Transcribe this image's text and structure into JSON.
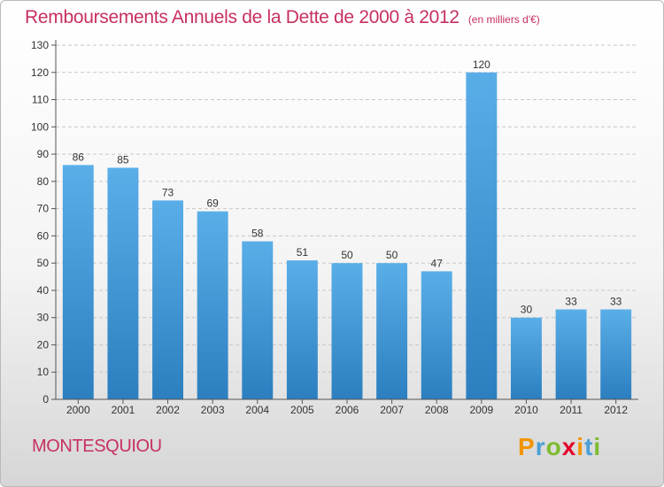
{
  "title": "Remboursements Annuels de la Dette de 2000 à 2012",
  "unit_note": "(en milliers d'€)",
  "commune": "MONTESQUIOU",
  "brand": {
    "letters": [
      "P",
      "r",
      "o",
      "x",
      "i",
      "t",
      "i"
    ],
    "colors": [
      "#f29400",
      "#4a9fd8",
      "#7dbb2f",
      "#e4002b",
      "#f29400",
      "#4a9fd8",
      "#7dbb2f"
    ]
  },
  "colors": {
    "title": "#c7305f",
    "bar_top": "#5aaee8",
    "bar_bottom": "#2c7fbf"
  },
  "chart_data": {
    "type": "bar",
    "title": "Remboursements Annuels de la Dette de 2000 à 2012",
    "categories": [
      "2000",
      "2001",
      "2002",
      "2003",
      "2004",
      "2005",
      "2006",
      "2007",
      "2008",
      "2009",
      "2010",
      "2011",
      "2012"
    ],
    "values": [
      86,
      85,
      73,
      69,
      58,
      51,
      50,
      50,
      47,
      120,
      30,
      33,
      33
    ],
    "ylim": [
      0,
      130
    ],
    "yticks": [
      0,
      10,
      20,
      30,
      40,
      50,
      60,
      70,
      80,
      90,
      100,
      110,
      120,
      130
    ],
    "grid": true,
    "xlabel": "",
    "ylabel": ""
  }
}
